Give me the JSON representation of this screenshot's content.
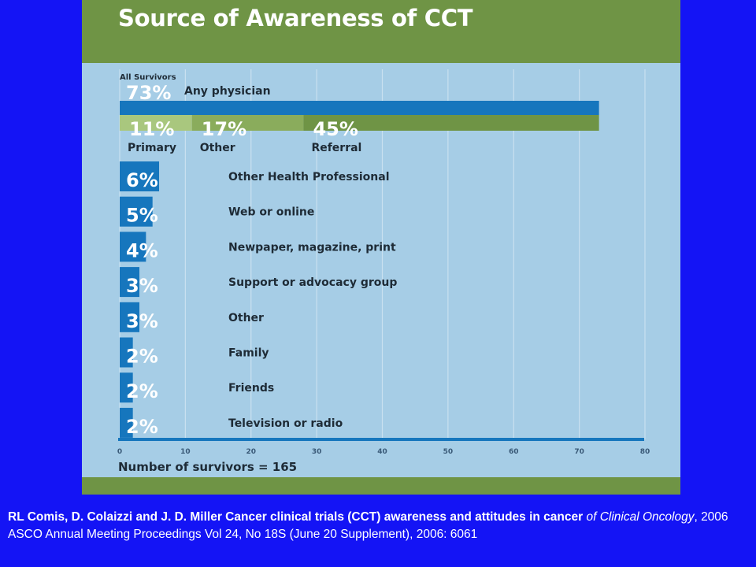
{
  "chart_data": {
    "type": "bar",
    "title": "Source of  Awareness of CCT",
    "group_label": "All Survivors",
    "xlabel": "Number of survivors = 165",
    "xlim": [
      0,
      80
    ],
    "x_ticks": [
      "0",
      "10",
      "20",
      "30",
      "40",
      "50",
      "60",
      "70",
      "80"
    ],
    "colors": {
      "bar": "#1676bd",
      "sub_primary": "#a9c77e",
      "sub_other": "#8aac5c",
      "sub_referral": "#6f9445"
    },
    "headline": {
      "label": "Any physician",
      "percent_label": "73%",
      "value": 73,
      "components": [
        {
          "name": "Primary",
          "percent_label": "11%",
          "value": 11
        },
        {
          "name": "Other",
          "percent_label": "17%",
          "value": 17
        },
        {
          "name": "Referral",
          "percent_label": "45%",
          "value": 45
        }
      ]
    },
    "bars": [
      {
        "label": "Other Health Professional",
        "percent_label": "6%",
        "value": 6
      },
      {
        "label": "Web or online",
        "percent_label": "5%",
        "value": 5
      },
      {
        "label": "Newpaper, magazine, print",
        "percent_label": "4%",
        "value": 4
      },
      {
        "label": "Support or advocacy group",
        "percent_label": "3%",
        "value": 3
      },
      {
        "label": "Other",
        "percent_label": "3%",
        "value": 3
      },
      {
        "label": "Family",
        "percent_label": "2%",
        "value": 2
      },
      {
        "label": "Friends",
        "percent_label": "2%",
        "value": 2
      },
      {
        "label": "Television or radio",
        "percent_label": "2%",
        "value": 2
      }
    ]
  },
  "citation": {
    "authors_title": "RL Comis, D. Colaizzi and J. D. Miller Cancer clinical trials (CCT) awareness and attitudes in cancer",
    "journal": "of Clinical Oncology",
    "details": ", 2006 ASCO Annual Meeting Proceedings  Vol 24, No 18S (June 20 Supplement), 2006: 6061"
  }
}
